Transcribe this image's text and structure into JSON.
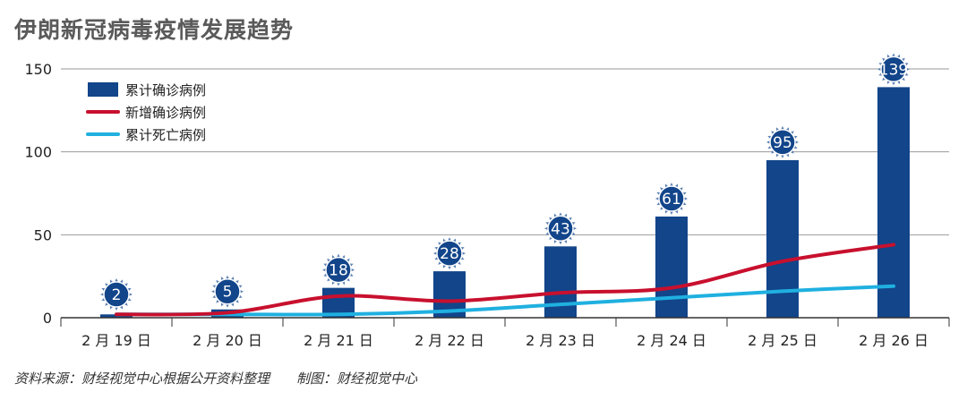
{
  "title": "伊朗新冠病毒疫情发展趋势",
  "source_note": "资料来源：财经视觉中心根据公开资料整理　　制图：财经视觉中心",
  "colors": {
    "bar": "#12458a",
    "new_cases": "#c8102e",
    "deaths": "#1fb0e0",
    "grid": "#9a9a9a"
  },
  "chart_data": {
    "type": "bar",
    "title": "伊朗新冠病毒疫情发展趋势",
    "categories": [
      "2 月 19 日",
      "2 月 20 日",
      "2 月 21 日",
      "2 月 22 日",
      "2 月 23 日",
      "2 月 24 日",
      "2 月 25 日",
      "2 月 26 日"
    ],
    "ylim": [
      0,
      150
    ],
    "yticks": [
      0,
      50,
      100,
      150
    ],
    "grid": true,
    "legend_position": "top-left",
    "series": [
      {
        "name": "累计确诊病例",
        "kind": "bar",
        "values": [
          2,
          5,
          18,
          28,
          43,
          61,
          95,
          139
        ]
      },
      {
        "name": "新增确诊病例",
        "kind": "line",
        "values": [
          2,
          3,
          13,
          10,
          15,
          18,
          34,
          44
        ]
      },
      {
        "name": "累计死亡病例",
        "kind": "line",
        "values": [
          2,
          2,
          2,
          4,
          8,
          12,
          16,
          19
        ]
      }
    ]
  }
}
